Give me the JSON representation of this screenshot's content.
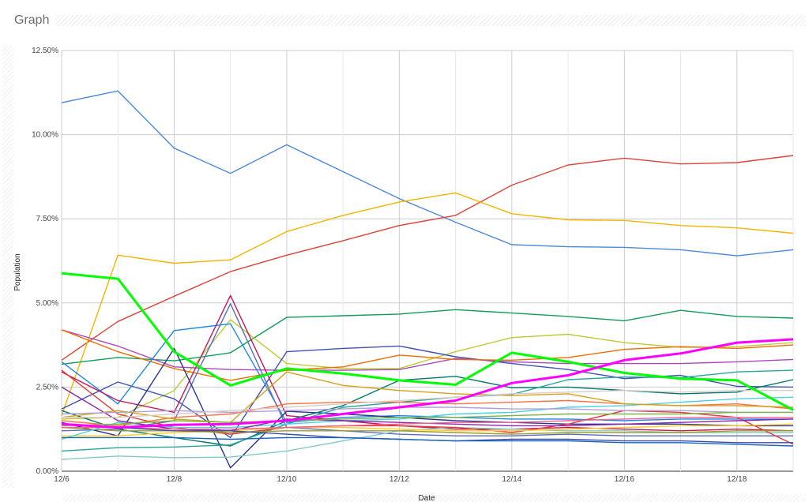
{
  "panel": {
    "title": "Graph"
  },
  "chart_data": {
    "type": "line",
    "title": "",
    "xlabel": "Date",
    "ylabel": "Population",
    "x": [
      "12/6",
      "12/7",
      "12/8",
      "12/9",
      "12/10",
      "12/11",
      "12/12",
      "12/13",
      "12/14",
      "12/15",
      "12/16",
      "12/17",
      "12/18",
      "12/19"
    ],
    "x_tick_labels": [
      "12/6",
      "12/8",
      "12/10",
      "12/12",
      "12/14",
      "12/16",
      "12/18"
    ],
    "y_tick_labels": [
      "0.00%",
      "2.50%",
      "5.00%",
      "7.50%",
      "10.00%",
      "12.50%"
    ],
    "ylim": [
      0,
      12.5
    ],
    "grid": true,
    "legend": "none",
    "series": [
      {
        "color": "#4a89dc",
        "values": [
          10.95,
          11.3,
          9.6,
          8.85,
          9.7,
          8.9,
          8.1,
          7.4,
          6.73,
          6.67,
          6.65,
          6.58,
          6.4,
          6.58
        ]
      },
      {
        "color": "#db4437",
        "values": [
          3.3,
          4.45,
          5.2,
          5.93,
          6.42,
          6.85,
          7.3,
          7.6,
          8.5,
          9.1,
          9.3,
          9.13,
          9.17,
          9.38
        ]
      },
      {
        "color": "#f4b400",
        "values": [
          1.65,
          6.42,
          6.18,
          6.28,
          7.12,
          7.6,
          8.0,
          8.27,
          7.65,
          7.47,
          7.45,
          7.3,
          7.23,
          7.07
        ]
      },
      {
        "color": "#00ff00",
        "width": 3,
        "values": [
          5.88,
          5.72,
          3.55,
          2.55,
          3.05,
          2.9,
          2.7,
          2.57,
          3.52,
          3.25,
          2.92,
          2.75,
          2.7,
          1.82
        ]
      },
      {
        "color": "#ff00ff",
        "width": 3,
        "values": [
          1.4,
          1.3,
          1.38,
          1.4,
          1.5,
          1.7,
          1.9,
          2.1,
          2.62,
          2.85,
          3.3,
          3.5,
          3.82,
          3.92
        ]
      },
      {
        "color": "#0f9d58",
        "values": [
          3.18,
          3.38,
          3.28,
          3.52,
          4.57,
          4.62,
          4.67,
          4.8,
          4.7,
          4.6,
          4.47,
          4.78,
          4.6,
          4.55
        ]
      },
      {
        "color": "#c0ca33",
        "values": [
          1.55,
          1.6,
          2.4,
          4.5,
          3.2,
          3.05,
          3.05,
          3.55,
          3.97,
          4.07,
          3.82,
          3.68,
          3.7,
          3.82
        ]
      },
      {
        "color": "#3f51b5",
        "values": [
          1.85,
          2.65,
          2.15,
          1.0,
          3.55,
          3.65,
          3.72,
          3.4,
          3.2,
          3.02,
          2.75,
          2.85,
          2.52,
          2.5
        ]
      },
      {
        "color": "#ab47bc",
        "values": [
          4.2,
          3.72,
          3.1,
          3.02,
          3.0,
          3.0,
          3.02,
          3.35,
          3.25,
          3.2,
          3.2,
          3.2,
          3.25,
          3.32
        ]
      },
      {
        "color": "#ef6c00",
        "values": [
          4.2,
          3.55,
          3.05,
          2.7,
          3.0,
          3.1,
          3.45,
          3.32,
          3.3,
          3.38,
          3.62,
          3.7,
          3.65,
          3.75
        ]
      },
      {
        "color": "#1e88e5",
        "values": [
          3.25,
          2.0,
          4.18,
          4.38,
          1.45,
          1.6,
          1.65,
          1.6,
          1.55,
          1.55,
          1.5,
          1.55,
          1.55,
          1.55
        ]
      },
      {
        "color": "#5c6bc0",
        "values": [
          1.2,
          1.25,
          1.5,
          4.98,
          1.3,
          1.2,
          1.1,
          1.05,
          1.05,
          1.1,
          1.05,
          1.05,
          1.05,
          1.05
        ]
      },
      {
        "color": "#c2185b",
        "values": [
          2.95,
          2.1,
          1.75,
          5.22,
          1.65,
          1.5,
          1.35,
          1.25,
          1.25,
          1.3,
          1.25,
          1.2,
          1.25,
          1.2
        ]
      },
      {
        "color": "#283593",
        "values": [
          1.45,
          1.05,
          3.65,
          0.1,
          1.78,
          1.7,
          1.6,
          1.5,
          1.45,
          1.4,
          1.4,
          1.4,
          1.35,
          1.35
        ]
      },
      {
        "color": "#00796b",
        "values": [
          1.8,
          1.25,
          1.0,
          0.75,
          1.5,
          1.95,
          2.7,
          2.82,
          2.48,
          2.5,
          2.4,
          2.3,
          2.35,
          2.72
        ]
      },
      {
        "color": "#26a69a",
        "values": [
          0.6,
          0.7,
          0.72,
          0.78,
          1.4,
          1.9,
          2.05,
          2.2,
          2.28,
          2.72,
          2.8,
          2.78,
          2.95,
          3.0
        ]
      },
      {
        "color": "#80cbc4",
        "values": [
          0.35,
          0.45,
          0.4,
          0.42,
          0.6,
          0.9,
          1.2,
          1.3,
          1.25,
          1.2,
          1.2,
          1.15,
          1.15,
          1.15
        ]
      },
      {
        "color": "#e53935",
        "values": [
          3.0,
          1.7,
          1.3,
          1.1,
          1.3,
          1.35,
          1.35,
          1.3,
          1.15,
          1.4,
          1.8,
          1.75,
          1.6,
          0.8
        ]
      },
      {
        "color": "#ff7043",
        "values": [
          1.5,
          1.35,
          1.6,
          1.7,
          2.0,
          2.05,
          2.05,
          2.0,
          2.05,
          2.1,
          2.0,
          1.95,
          2.0,
          1.85
        ]
      },
      {
        "color": "#ffca28",
        "values": [
          1.05,
          1.05,
          1.15,
          1.2,
          1.3,
          1.3,
          1.25,
          1.2,
          1.2,
          1.25,
          1.3,
          1.35,
          1.35,
          1.4
        ]
      },
      {
        "color": "#9e9d24",
        "values": [
          1.3,
          1.2,
          1.2,
          1.15,
          1.2,
          1.2,
          1.2,
          1.15,
          1.1,
          1.15,
          1.15,
          1.15,
          1.2,
          1.2
        ]
      },
      {
        "color": "#4dd0e1",
        "values": [
          0.95,
          1.45,
          1.3,
          1.3,
          1.4,
          1.5,
          1.55,
          1.7,
          1.75,
          1.9,
          1.95,
          2.05,
          2.15,
          2.2
        ]
      },
      {
        "color": "#8e24aa",
        "values": [
          2.5,
          1.5,
          1.25,
          1.2,
          1.55,
          1.5,
          1.45,
          1.4,
          1.35,
          1.35,
          1.4,
          1.45,
          1.5,
          1.55
        ]
      },
      {
        "color": "#f06292",
        "values": [
          1.3,
          1.3,
          1.25,
          1.25,
          1.3,
          1.35,
          1.4,
          1.45,
          1.45,
          1.5,
          1.55,
          1.6,
          1.6,
          1.6
        ]
      },
      {
        "color": "#d4a017",
        "values": [
          1.6,
          1.8,
          1.55,
          1.45,
          2.95,
          2.55,
          2.4,
          2.3,
          2.25,
          2.3,
          2.0,
          1.95,
          1.95,
          1.9
        ]
      },
      {
        "color": "#b39ddb",
        "values": [
          1.7,
          1.75,
          1.8,
          1.75,
          1.8,
          1.85,
          1.9,
          1.9,
          1.85,
          1.85,
          1.8,
          1.8,
          1.75,
          1.75
        ]
      },
      {
        "color": "#3949ab",
        "values": [
          1.4,
          1.3,
          1.2,
          1.2,
          1.1,
          1.0,
          0.95,
          0.9,
          0.95,
          0.95,
          0.9,
          0.9,
          0.85,
          0.85
        ]
      },
      {
        "color": "#1565c0",
        "values": [
          1.0,
          1.0,
          1.0,
          0.95,
          1.0,
          1.0,
          0.95,
          0.9,
          0.9,
          0.9,
          0.85,
          0.85,
          0.8,
          0.75
        ]
      },
      {
        "color": "#d7ccc8",
        "values": [
          1.6,
          1.6,
          1.7,
          1.8,
          1.9,
          2.0,
          2.1,
          2.2,
          2.3,
          2.35,
          2.4,
          2.35,
          2.4,
          2.4
        ]
      },
      {
        "color": "#7cb342",
        "values": [
          1.35,
          1.4,
          1.5,
          1.45,
          1.5,
          1.55,
          1.6,
          1.6,
          1.65,
          1.7,
          1.7,
          1.7,
          1.75,
          1.75
        ]
      }
    ]
  }
}
